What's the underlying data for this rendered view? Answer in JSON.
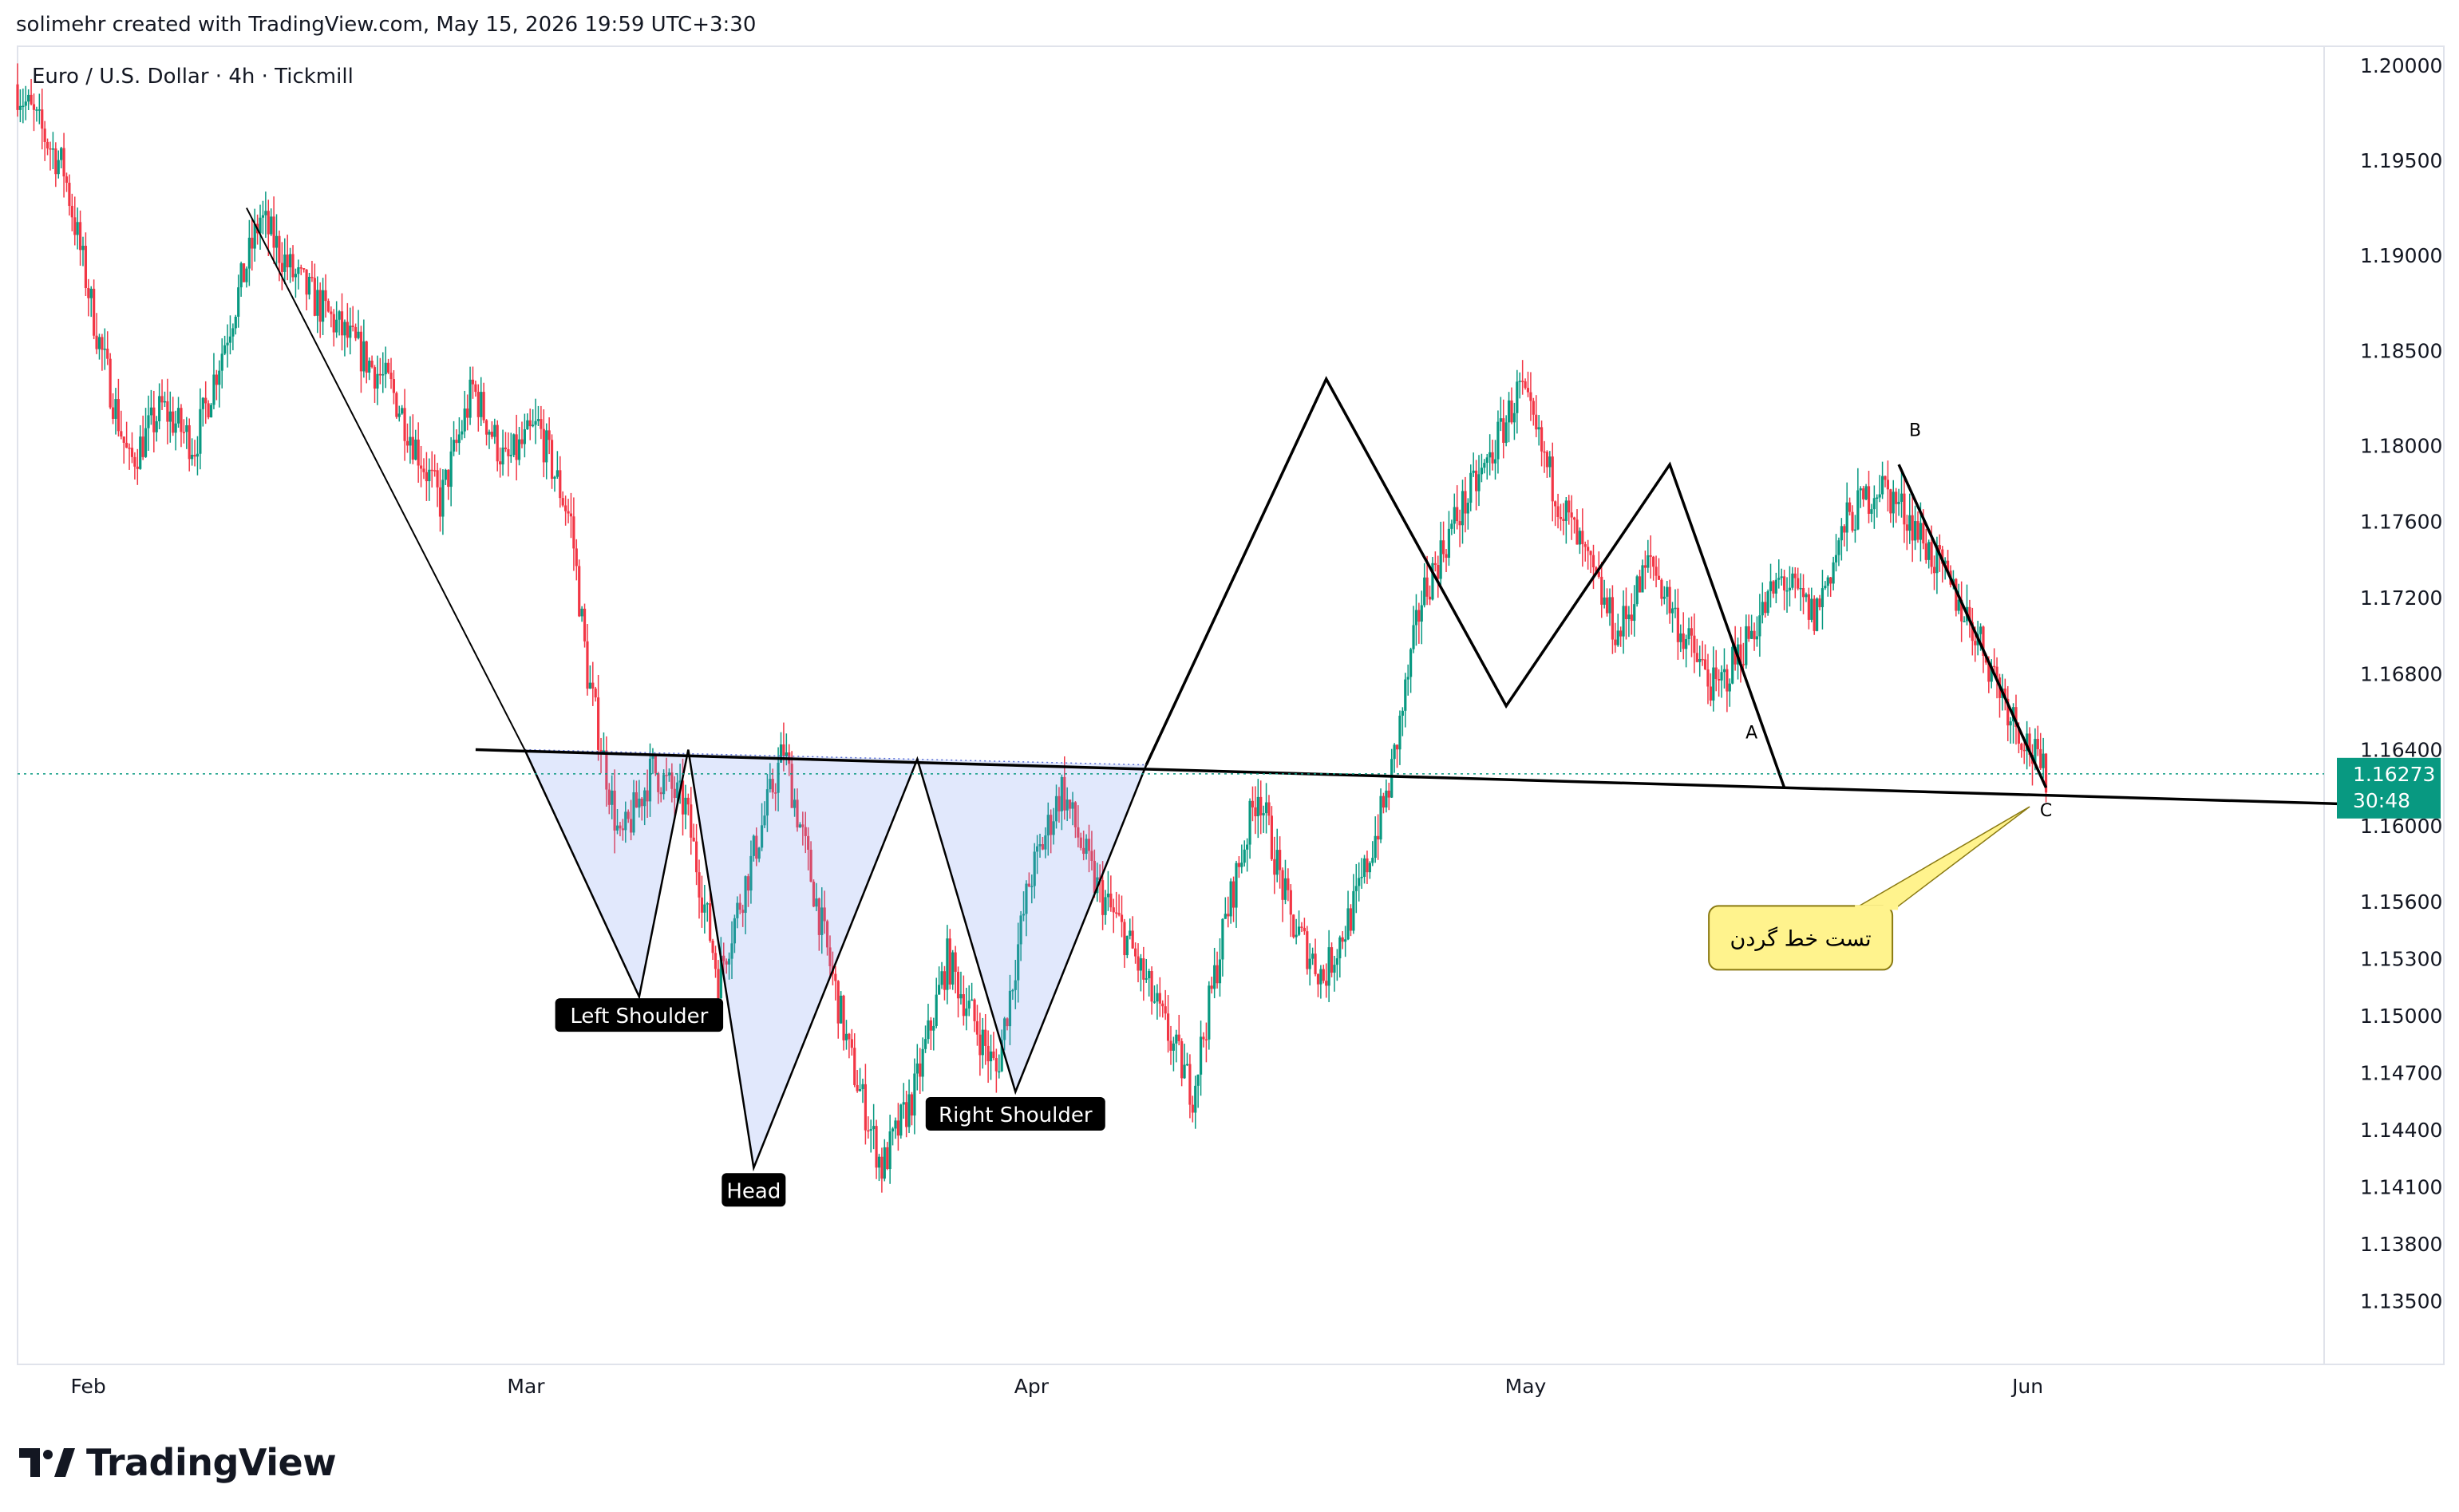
{
  "header": {
    "attribution": "solimehr created with TradingView.com, May 15, 2026 19:59 UTC+3:30"
  },
  "branding": {
    "logo_text": "TradingView",
    "logo_icon": "tradingview-logo-icon"
  },
  "chart_data": {
    "type": "candlestick",
    "title": "Euro / U.S. Dollar · 4h · Tickmill",
    "symbol": "EURUSD",
    "timeframe": "4h",
    "broker": "Tickmill",
    "ylim": [
      1.1325,
      1.2005
    ],
    "yticks": [
      "1.20000",
      "1.19500",
      "1.19000",
      "1.18500",
      "1.18000",
      "1.17600",
      "1.17200",
      "1.16800",
      "1.16400",
      "1.16000",
      "1.15600",
      "1.15300",
      "1.15000",
      "1.14700",
      "1.14400",
      "1.14100",
      "1.13800",
      "1.13500"
    ],
    "x_range": [
      "2026-01-29",
      "2026-06-19"
    ],
    "xticks": [
      {
        "label": "Feb",
        "date": "2026-02-01"
      },
      {
        "label": "Mar",
        "date": "2026-03-01"
      },
      {
        "label": "Apr",
        "date": "2026-04-01"
      },
      {
        "label": "May",
        "date": "2026-05-01"
      },
      {
        "label": "Jun",
        "date": "2026-06-01"
      }
    ],
    "current_price": {
      "value": "1.16273",
      "countdown": "30:48",
      "color": "#089981"
    },
    "colors": {
      "up": "#089981",
      "down": "#f23645"
    },
    "price_path": [
      [
        "2026-01-29",
        1.199
      ],
      [
        "2026-02-01",
        1.1945
      ],
      [
        "2026-02-03",
        1.186
      ],
      [
        "2026-02-05",
        1.179
      ],
      [
        "2026-02-07",
        1.182
      ],
      [
        "2026-02-09",
        1.18
      ],
      [
        "2026-02-11",
        1.186
      ],
      [
        "2026-02-13",
        1.192
      ],
      [
        "2026-02-15",
        1.189
      ],
      [
        "2026-02-18",
        1.186
      ],
      [
        "2026-02-21",
        1.183
      ],
      [
        "2026-02-24",
        1.177
      ],
      [
        "2026-02-26",
        1.183
      ],
      [
        "2026-02-28",
        1.179
      ],
      [
        "2026-03-02",
        1.181
      ],
      [
        "2026-03-04",
        1.176
      ],
      [
        "2026-03-05",
        1.168
      ],
      [
        "2026-03-07",
        1.159
      ],
      [
        "2026-03-09",
        1.163
      ],
      [
        "2026-03-11",
        1.161
      ],
      [
        "2026-03-13",
        1.152
      ],
      [
        "2026-03-15",
        1.158
      ],
      [
        "2026-03-17",
        1.164
      ],
      [
        "2026-03-19",
        1.156
      ],
      [
        "2026-03-21",
        1.148
      ],
      [
        "2026-03-23",
        1.142
      ],
      [
        "2026-03-25",
        1.146
      ],
      [
        "2026-03-27",
        1.153
      ],
      [
        "2026-03-30",
        1.147
      ],
      [
        "2026-04-01",
        1.157
      ],
      [
        "2026-04-03",
        1.162
      ],
      [
        "2026-04-05",
        1.157
      ],
      [
        "2026-04-07",
        1.154
      ],
      [
        "2026-04-09",
        1.15
      ],
      [
        "2026-04-11",
        1.146
      ],
      [
        "2026-04-13",
        1.155
      ],
      [
        "2026-04-15",
        1.162
      ],
      [
        "2026-04-17",
        1.155
      ],
      [
        "2026-04-19",
        1.152
      ],
      [
        "2026-04-21",
        1.156
      ],
      [
        "2026-04-23",
        1.162
      ],
      [
        "2026-04-25",
        1.172
      ],
      [
        "2026-04-27",
        1.176
      ],
      [
        "2026-04-29",
        1.179
      ],
      [
        "2026-05-01",
        1.183
      ],
      [
        "2026-05-03",
        1.178
      ],
      [
        "2026-05-05",
        1.174
      ],
      [
        "2026-05-07",
        1.17
      ],
      [
        "2026-05-09",
        1.174
      ],
      [
        "2026-05-11",
        1.17
      ],
      [
        "2026-05-13",
        1.167
      ],
      [
        "2026-05-15",
        1.17
      ],
      [
        "2026-05-17",
        1.173
      ],
      [
        "2026-05-19",
        1.171
      ],
      [
        "2026-05-21",
        1.176
      ],
      [
        "2026-05-23",
        1.178
      ],
      [
        "2026-05-25",
        1.176
      ],
      [
        "2026-05-27",
        1.173
      ],
      [
        "2026-05-29",
        1.17
      ],
      [
        "2026-05-31",
        1.166
      ],
      [
        "2026-06-02",
        1.1627
      ]
    ],
    "annotations": {
      "pattern_labels": [
        {
          "text": "Left Shoulder",
          "date": "2026-03-08",
          "price": 1.15
        },
        {
          "text": "Head",
          "date": "2026-03-15",
          "price": 1.1408
        },
        {
          "text": "Right Shoulder",
          "date": "2026-03-31",
          "price": 1.1448
        }
      ],
      "wave_labels": [
        {
          "text": "A",
          "date": "2026-05-15",
          "price": 1.1646
        },
        {
          "text": "B",
          "date": "2026-05-25",
          "price": 1.1805
        },
        {
          "text": "C",
          "date": "2026-06-02",
          "price": 1.1605
        }
      ],
      "callout": {
        "text": "تست خط گردن",
        "date": "2026-05-18",
        "price": 1.1541,
        "target_date": "2026-06-01",
        "target_price": 1.161
      },
      "neckline": [
        [
          "2026-02-26",
          1.164
        ],
        [
          "2026-06-26",
          1.161
        ]
      ],
      "head_shoulders_path": [
        [
          "2026-03-01",
          1.164
        ],
        [
          "2026-03-08",
          1.151
        ],
        [
          "2026-03-11",
          1.164
        ],
        [
          "2026-03-15",
          1.142
        ],
        [
          "2026-03-25",
          1.1635
        ],
        [
          "2026-03-31",
          1.146
        ],
        [
          "2026-04-08",
          1.1632
        ]
      ],
      "trend_path": [
        [
          "2026-02-12",
          1.1925
        ],
        [
          "2026-03-01",
          1.164
        ],
        [
          "2026-03-08",
          1.151
        ]
      ],
      "abc_path": [
        [
          "2026-04-08",
          1.1632
        ],
        [
          "2026-04-19",
          1.1835
        ],
        [
          "2026-04-30",
          1.1663
        ],
        [
          "2026-05-10",
          1.179
        ],
        [
          "2026-05-17",
          1.162
        ]
      ]
    }
  }
}
